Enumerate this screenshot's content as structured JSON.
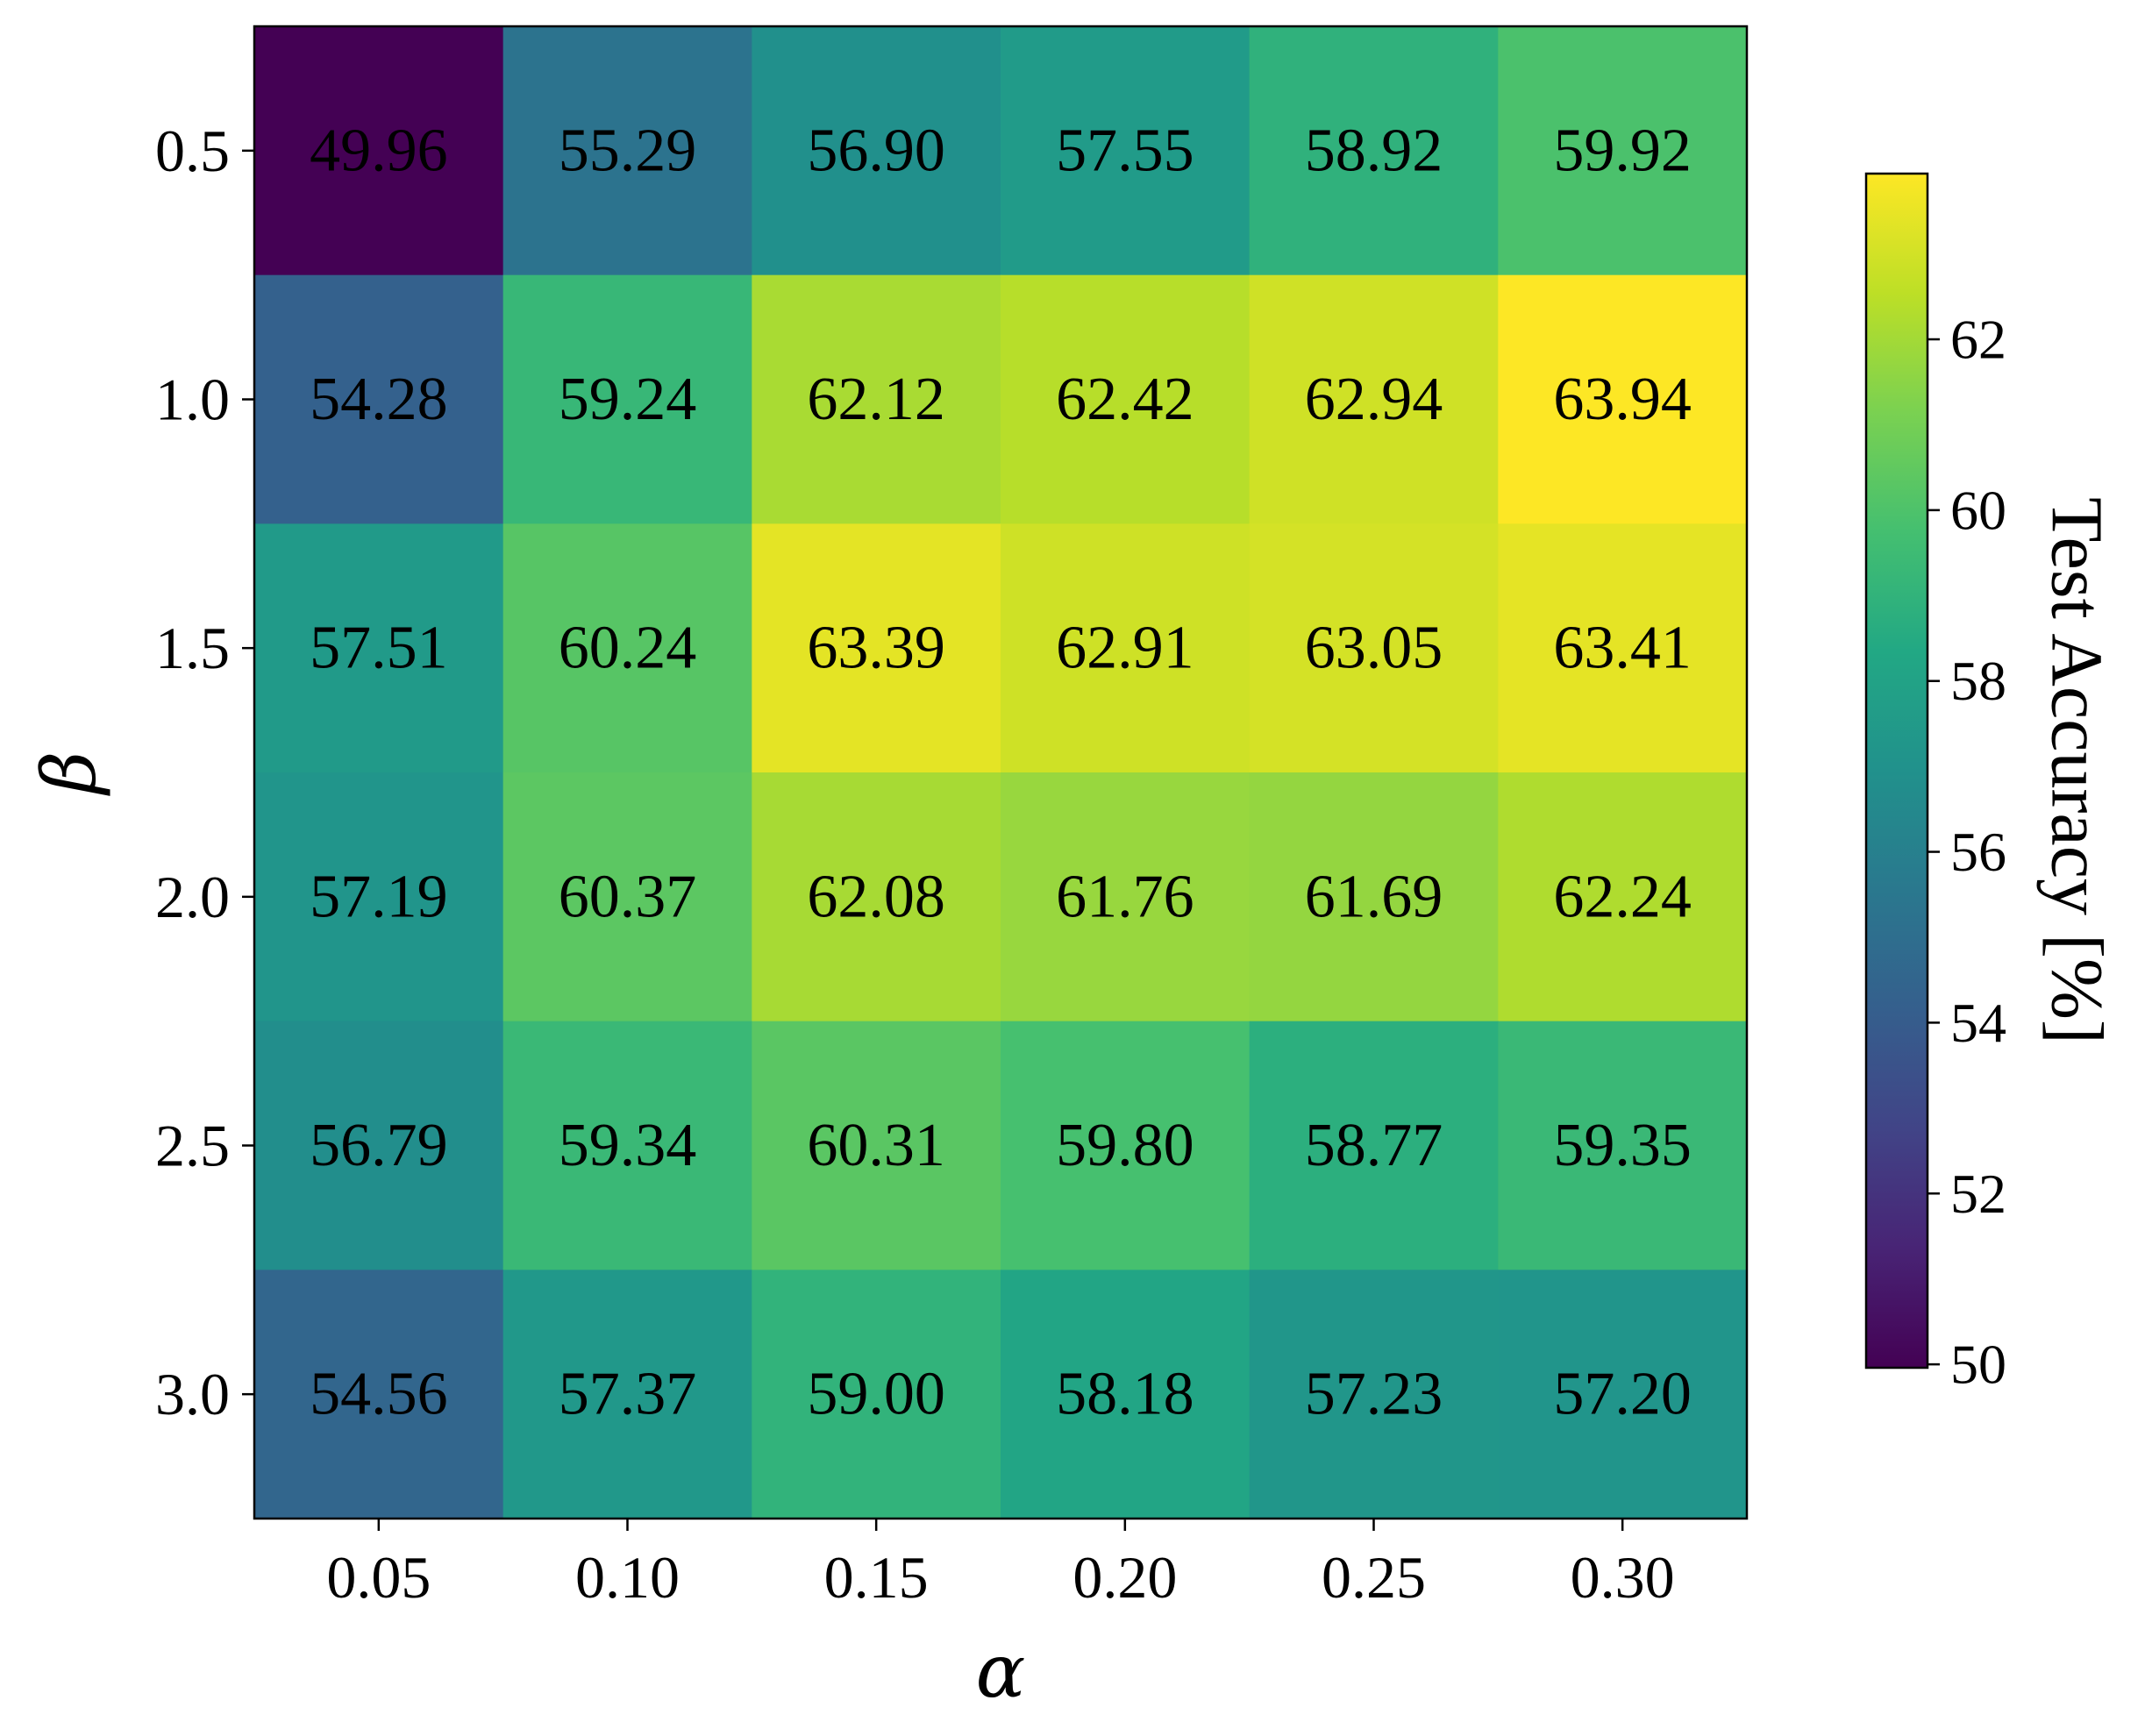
{
  "chart_data": {
    "type": "heatmap",
    "title": "",
    "xlabel": "α",
    "ylabel": "β",
    "x_categories": [
      "0.05",
      "0.10",
      "0.15",
      "0.20",
      "0.25",
      "0.30"
    ],
    "y_categories": [
      "0.5",
      "1.0",
      "1.5",
      "2.0",
      "2.5",
      "3.0"
    ],
    "values": [
      [
        49.96,
        55.29,
        56.9,
        57.55,
        58.92,
        59.92
      ],
      [
        54.28,
        59.24,
        62.12,
        62.42,
        62.94,
        63.94
      ],
      [
        57.51,
        60.24,
        63.39,
        62.91,
        63.05,
        63.41
      ],
      [
        57.19,
        60.37,
        62.08,
        61.76,
        61.69,
        62.24
      ],
      [
        56.79,
        59.34,
        60.31,
        59.8,
        58.77,
        59.35
      ],
      [
        54.56,
        57.37,
        59.0,
        58.18,
        57.23,
        57.2
      ]
    ],
    "value_format_decimals": 2,
    "colormap": "viridis",
    "color_range": [
      49.96,
      63.94
    ],
    "colorbar": {
      "label": "Test Accuracy [%]",
      "ticks": [
        50,
        52,
        54,
        56,
        58,
        60,
        62
      ]
    },
    "annotation_color": "#000000"
  }
}
